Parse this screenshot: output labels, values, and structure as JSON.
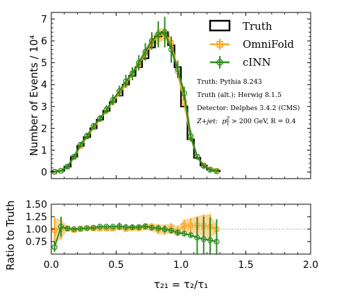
{
  "chart_data": [
    {
      "type": "line",
      "panel": "main",
      "ylabel": "Number of Events / 10⁴",
      "xlim": [
        0,
        2.0
      ],
      "ylim": [
        -0.3,
        7.3
      ],
      "yticks": [
        0,
        1,
        2,
        3,
        4,
        5,
        6,
        7
      ],
      "legend": {
        "placement": "top-right",
        "entries": [
          "Truth",
          "OmniFold",
          "cINN"
        ]
      },
      "annotations": [
        "Truth: Pythia 8.243",
        "Truth (alt.): Herwig 8.1.5",
        "Detector: Delphes 3.4.2 (CMS)"
      ],
      "annotation_process": "Z+jet:",
      "annotation_cut": "p",
      "annotation_cut_super": "Z",
      "annotation_cut_sub": "T",
      "annotation_cut_rest": " > 200 GeV, R = 0.4",
      "bin_edges": [
        0.0,
        0.05,
        0.1,
        0.15,
        0.2,
        0.25,
        0.3,
        0.35,
        0.4,
        0.45,
        0.5,
        0.55,
        0.6,
        0.65,
        0.7,
        0.75,
        0.8,
        0.85,
        0.9,
        0.95,
        1.0,
        1.05,
        1.1,
        1.15,
        1.2,
        1.25,
        1.3
      ],
      "series": [
        {
          "name": "Truth",
          "style": "step",
          "color": "#000000",
          "values": [
            0.02,
            0.06,
            0.25,
            0.7,
            1.2,
            1.6,
            2.0,
            2.4,
            2.8,
            3.2,
            3.5,
            4.0,
            4.4,
            4.8,
            5.2,
            5.7,
            6.2,
            6.4,
            5.8,
            4.8,
            3.0,
            1.5,
            0.65,
            0.3,
            0.12,
            0.06
          ]
        },
        {
          "name": "OmniFold",
          "style": "band",
          "color": "#f5a623",
          "x": [
            0.025,
            0.075,
            0.125,
            0.175,
            0.225,
            0.275,
            0.325,
            0.375,
            0.425,
            0.475,
            0.525,
            0.575,
            0.625,
            0.675,
            0.725,
            0.775,
            0.825,
            0.875,
            0.925,
            0.975,
            1.025,
            1.075,
            1.125,
            1.175,
            1.225,
            1.275
          ],
          "values": [
            0.02,
            0.06,
            0.25,
            0.68,
            1.18,
            1.62,
            2.02,
            2.42,
            2.82,
            3.22,
            3.62,
            4.02,
            4.52,
            4.92,
            5.42,
            5.92,
            6.22,
            6.32,
            5.92,
            4.6,
            3.2,
            1.6,
            0.7,
            0.32,
            0.13,
            0.06
          ],
          "errors": [
            0.01,
            0.02,
            0.03,
            0.06,
            0.06,
            0.06,
            0.07,
            0.07,
            0.08,
            0.08,
            0.1,
            0.12,
            0.15,
            0.18,
            0.22,
            0.28,
            0.32,
            0.28,
            0.26,
            0.22,
            0.18,
            0.12,
            0.08,
            0.04,
            0.02,
            0.01
          ]
        },
        {
          "name": "cINN",
          "style": "errorbar",
          "color": "#2a8c1f",
          "x": [
            0.025,
            0.075,
            0.125,
            0.175,
            0.225,
            0.275,
            0.325,
            0.375,
            0.425,
            0.475,
            0.525,
            0.575,
            0.625,
            0.675,
            0.725,
            0.775,
            0.825,
            0.875,
            0.925,
            0.975,
            1.025,
            1.075,
            1.125,
            1.175,
            1.225,
            1.275
          ],
          "values": [
            0.01,
            0.06,
            0.25,
            0.7,
            1.25,
            1.65,
            2.1,
            2.45,
            2.85,
            3.3,
            3.7,
            4.15,
            4.5,
            5.0,
            5.5,
            6.0,
            6.3,
            6.4,
            5.6,
            4.7,
            3.6,
            1.65,
            0.7,
            0.28,
            0.1,
            0.03
          ],
          "errors": [
            0.02,
            0.04,
            0.1,
            0.1,
            0.12,
            0.15,
            0.15,
            0.15,
            0.2,
            0.25,
            0.25,
            0.3,
            0.3,
            0.35,
            0.4,
            0.4,
            0.6,
            0.7,
            0.6,
            0.4,
            0.3,
            0.25,
            0.12,
            0.1,
            0.08,
            0.05
          ]
        }
      ]
    },
    {
      "type": "line",
      "panel": "ratio",
      "xlabel": "τ₂₁ = τ₂/τ₁",
      "ylabel": "Ratio to Truth",
      "xlim": [
        0,
        2.0
      ],
      "ylim": [
        0.5,
        1.5
      ],
      "xticks": [
        0.0,
        0.5,
        1.0,
        1.5,
        2.0
      ],
      "yticks": [
        0.75,
        1.0,
        1.25,
        1.5
      ],
      "xtick_labels": [
        "0.0",
        "0.5",
        "1.0",
        "1.5",
        "2.0"
      ],
      "ytick_labels": [
        "0.75",
        "1.00",
        "1.25",
        "1.50"
      ],
      "reference_line": 1.0,
      "series": [
        {
          "name": "OmniFold",
          "style": "band",
          "color": "#f5a623",
          "x": [
            0.025,
            0.075,
            0.125,
            0.175,
            0.225,
            0.275,
            0.325,
            0.375,
            0.425,
            0.475,
            0.525,
            0.575,
            0.625,
            0.675,
            0.725,
            0.775,
            0.825,
            0.875,
            0.925,
            0.975,
            1.025,
            1.075,
            1.125,
            1.175,
            1.225,
            1.275
          ],
          "values": [
            0.98,
            1.0,
            1.02,
            0.98,
            1.0,
            1.02,
            1.01,
            1.01,
            1.01,
            1.01,
            1.03,
            1.0,
            1.02,
            1.02,
            1.04,
            1.04,
            1.0,
            0.99,
            1.02,
            0.96,
            1.07,
            1.07,
            1.08,
            1.07,
            1.05,
            1.0
          ],
          "errors": [
            0.25,
            0.2,
            0.05,
            0.05,
            0.04,
            0.04,
            0.04,
            0.04,
            0.04,
            0.04,
            0.04,
            0.05,
            0.05,
            0.06,
            0.06,
            0.08,
            0.1,
            0.1,
            0.1,
            0.1,
            0.12,
            0.15,
            0.18,
            0.22,
            0.25,
            0.08
          ]
        },
        {
          "name": "cINN",
          "style": "errorbar",
          "color": "#2a8c1f",
          "x": [
            0.025,
            0.075,
            0.125,
            0.175,
            0.225,
            0.275,
            0.325,
            0.375,
            0.425,
            0.475,
            0.525,
            0.575,
            0.625,
            0.675,
            0.725,
            0.775,
            0.825,
            0.875,
            0.925,
            0.975,
            1.025,
            1.075,
            1.125,
            1.175,
            1.225,
            1.275
          ],
          "values": [
            0.64,
            1.05,
            1.01,
            1.0,
            1.01,
            1.02,
            1.03,
            1.05,
            1.05,
            1.05,
            1.06,
            1.04,
            1.04,
            1.04,
            1.06,
            1.03,
            1.02,
            1.0,
            0.97,
            0.93,
            0.91,
            0.88,
            0.83,
            0.8,
            0.78,
            0.75
          ],
          "errors": [
            0.1,
            0.2,
            0.04,
            0.03,
            0.03,
            0.03,
            0.03,
            0.03,
            0.03,
            0.03,
            0.07,
            0.06,
            0.04,
            0.04,
            0.04,
            0.05,
            0.05,
            0.07,
            0.06,
            0.06,
            0.05,
            0.05,
            0.4,
            0.45,
            0.45,
            0.45
          ]
        }
      ]
    }
  ]
}
